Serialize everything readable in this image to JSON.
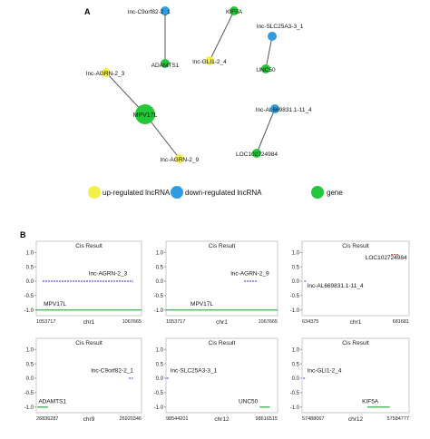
{
  "panel_a": {
    "label": "A",
    "nodes": [
      {
        "id": "c9orf82",
        "text": "lnc-C9orf82-2_1",
        "kind": "down"
      },
      {
        "id": "kif5a",
        "text": "KIF5A",
        "kind": "gene"
      },
      {
        "id": "slc25a3",
        "text": "lnc-SLC25A3-3_1",
        "kind": "down"
      },
      {
        "id": "adamts1",
        "text": "ADAMTS1",
        "kind": "gene"
      },
      {
        "id": "gli1",
        "text": "lnc-GLI1-2_4",
        "kind": "up"
      },
      {
        "id": "unc50",
        "text": "UNC50",
        "kind": "gene"
      },
      {
        "id": "agrn3",
        "text": "lnc-AGRN-2_3",
        "kind": "up"
      },
      {
        "id": "mpv17l",
        "text": "MPV17L",
        "kind": "gene"
      },
      {
        "id": "al669831",
        "text": "lnc-AL669831.1-11_4",
        "kind": "down"
      },
      {
        "id": "loc102724984",
        "text": "LOC102724984",
        "kind": "gene"
      },
      {
        "id": "agrn9",
        "text": "lnc-AGRN-2_9",
        "kind": "up"
      }
    ],
    "edges": [
      [
        "c9orf82",
        "adamts1"
      ],
      [
        "kif5a",
        "gli1"
      ],
      [
        "slc25a3",
        "unc50"
      ],
      [
        "agrn3",
        "mpv17l"
      ],
      [
        "mpv17l",
        "agrn9"
      ],
      [
        "al669831",
        "loc102724984"
      ]
    ],
    "legend": [
      {
        "kind": "up",
        "text": "up-regulated lncRNA"
      },
      {
        "kind": "down",
        "text": "down-regulated lncRNA"
      },
      {
        "kind": "gene",
        "text": "gene"
      }
    ],
    "colors": {
      "up": "#f4f04a",
      "down": "#2f9de0",
      "gene": "#22c83a",
      "edge": "#555555"
    }
  },
  "panel_b": {
    "label": "B",
    "y_ticks": [
      "1.0",
      "0.5",
      "0.0",
      "-0.5",
      "-1.0"
    ],
    "colors": {
      "lnc": "#2233dd",
      "gene": "#22aa33",
      "red": "#dd2222"
    },
    "plots": [
      {
        "title": "Cis Result",
        "chrom": "chr1",
        "xmin": "1053717",
        "xmax": "1067665",
        "lnc_label": "lnc-AGRN-2_3",
        "gene_label": "MPV17L"
      },
      {
        "title": "Cis Result",
        "chrom": "chr1",
        "xmin": "1053717",
        "xmax": "1067665",
        "lnc_label": "lnc-AGRN-2_9",
        "gene_label": "MPV17L"
      },
      {
        "title": "Cis Result",
        "chrom": "chr1",
        "xmin": "634375",
        "xmax": "681681",
        "lnc_label": "lnc-AL669831.1-11_4",
        "gene_label": "LOC102724984"
      },
      {
        "title": "Cis Result",
        "chrom": "chr9",
        "xmin": "26836287",
        "xmax": "26920346",
        "lnc_label": "lnc-C9orf82-2_1",
        "gene_label": "ADAMTS1"
      },
      {
        "title": "Cis Result",
        "chrom": "chr12",
        "xmin": "98544201",
        "xmax": "98616515",
        "lnc_label": "lnc-SLC25A3-3_1",
        "gene_label": "UNC50"
      },
      {
        "title": "Cis Result",
        "chrom": "chr12",
        "xmin": "57488067",
        "xmax": "57584777",
        "lnc_label": "lnc-GLI1-2_4",
        "gene_label": "KIF5A"
      }
    ]
  }
}
